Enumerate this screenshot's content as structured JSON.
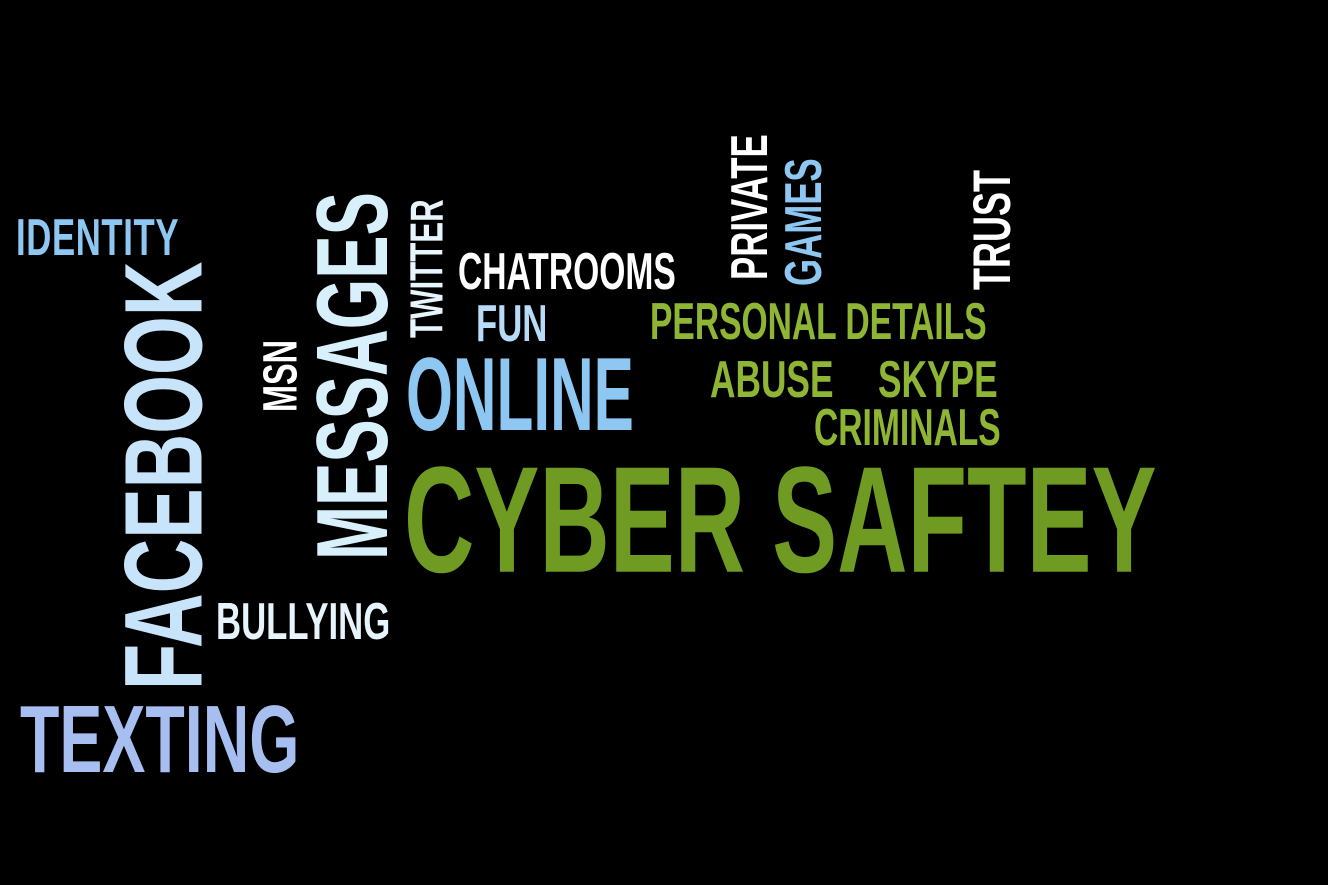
{
  "background": "#000000",
  "colors": {
    "light_blue": "#b8dcf8",
    "sky_blue": "#8ec8f2",
    "periwinkle": "#a7bef0",
    "pale_cyan": "#d8f0fc",
    "white": "#ffffff",
    "green": "#6f9b22",
    "light_green": "#8fb535"
  },
  "words": {
    "cyber_saftey": "CYBER SAFTEY",
    "online": "ONLINE",
    "messages": "MESSAGES",
    "facebook": "FACEBOOK",
    "texting": "TEXTING",
    "identity": "IDENTITY",
    "bullying": "BULLYING",
    "msn": "MSN",
    "twitter": "TWITTER",
    "chatrooms": "CHATROOMS",
    "fun": "FUN",
    "private": "PRIVATE",
    "games": "GAMES",
    "trust": "TRUST",
    "personal_details": "PERSONAL DETAILS",
    "abuse": "ABUSE",
    "skype": "SKYPE",
    "criminals": "CRIMINALS"
  }
}
